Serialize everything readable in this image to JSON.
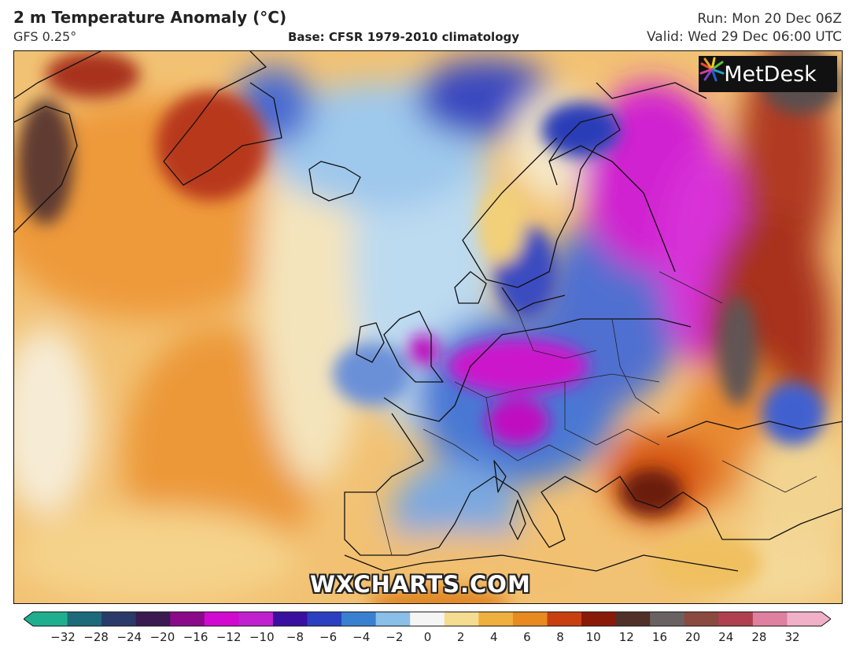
{
  "header": {
    "title": "2 m Temperature Anomaly (°C)",
    "model": "GFS 0.25°",
    "base": "Base: CFSR 1979-2010 climatology",
    "run": "Run: Mon 20 Dec 06Z",
    "valid": "Valid: Wed 29 Dec 06:00 UTC"
  },
  "brand": {
    "name": "MetDesk",
    "icon": "metdesk-swirl-logo"
  },
  "watermark": "WXCHARTS.COM",
  "colorbar": {
    "ticks": [
      "−32",
      "−28",
      "−24",
      "−20",
      "−16",
      "−12",
      "−10",
      "−8",
      "−6",
      "−4",
      "−2",
      "0",
      "2",
      "4",
      "6",
      "8",
      "10",
      "12",
      "16",
      "20",
      "24",
      "28",
      "32"
    ],
    "colors": [
      "#1faf8f",
      "#1d6a7a",
      "#2a3a6a",
      "#3a1a50",
      "#8a0a8a",
      "#d00ad0",
      "#c020d0",
      "#3a10a0",
      "#2a40c0",
      "#3a80d0",
      "#8ac0e8",
      "#f5f5f5",
      "#f5dc90",
      "#f0b040",
      "#e88a20",
      "#c84010",
      "#8a1a08",
      "#503028",
      "#6a6262",
      "#8a4a40",
      "#b04050",
      "#e080a0",
      "#f0b0c8"
    ]
  }
}
